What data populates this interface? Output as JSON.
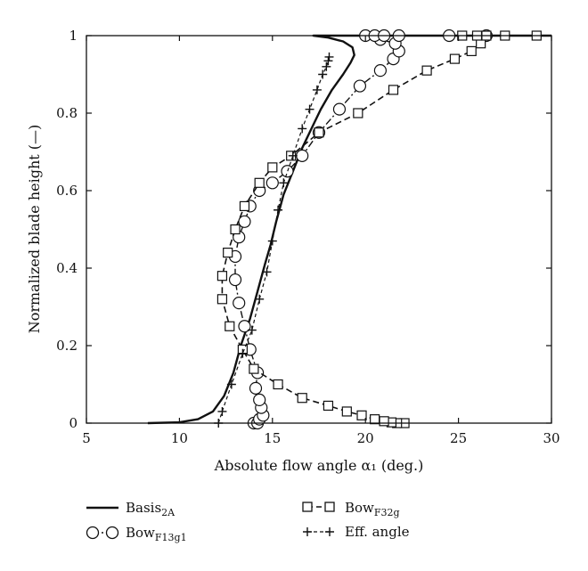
{
  "chart_data": {
    "type": "line",
    "title": "",
    "xlabel": "Absolute flow angle α₁ (deg.)",
    "ylabel": "Normalized blade height (—)",
    "xlim": [
      5,
      30
    ],
    "ylim": [
      0,
      1
    ],
    "xticks": [
      "5",
      "10",
      "15",
      "20",
      "25",
      "30"
    ],
    "yticks": [
      "0",
      "0.2",
      "0.4",
      "0.6",
      "0.8",
      "1"
    ],
    "grid": false,
    "legend_position": "bottom",
    "series": [
      {
        "name": "Basis",
        "name_sub": "2A",
        "style": "solid",
        "color": "#111111",
        "x": [
          8.3,
          10.0,
          11.0,
          11.8,
          12.4,
          12.9,
          13.3,
          13.8,
          14.2,
          14.6,
          14.9,
          15.2,
          15.6,
          16.1,
          16.6,
          17.1,
          17.6,
          18.2,
          18.8,
          19.2,
          19.4,
          19.3,
          18.8,
          18.0,
          17.2,
          20.0,
          25.0,
          30.0
        ],
        "y": [
          0.0,
          0.002,
          0.01,
          0.03,
          0.07,
          0.13,
          0.2,
          0.27,
          0.34,
          0.41,
          0.46,
          0.52,
          0.59,
          0.65,
          0.71,
          0.76,
          0.81,
          0.86,
          0.9,
          0.93,
          0.95,
          0.97,
          0.985,
          0.995,
          1.0,
          1.0,
          1.0,
          1.0
        ]
      },
      {
        "name": "Bow",
        "name_sub": "F13g1",
        "style": "dash-dot",
        "marker": "circle",
        "color": "#111111",
        "x": [
          14.0,
          14.2,
          14.3,
          14.5,
          14.4,
          14.3,
          14.1,
          14.2,
          13.8,
          13.5,
          13.2,
          13.0,
          13.0,
          13.2,
          13.5,
          13.8,
          14.3,
          15.0,
          15.8,
          16.6,
          17.5,
          18.6,
          19.7,
          20.8,
          21.5,
          21.8,
          21.6,
          20.8,
          20.0,
          20.5,
          21.0,
          21.8,
          24.5,
          26.5
        ],
        "y": [
          0.0,
          0.0,
          0.01,
          0.02,
          0.04,
          0.06,
          0.09,
          0.13,
          0.19,
          0.25,
          0.31,
          0.37,
          0.43,
          0.48,
          0.52,
          0.56,
          0.6,
          0.62,
          0.65,
          0.69,
          0.75,
          0.81,
          0.87,
          0.91,
          0.94,
          0.96,
          0.98,
          0.99,
          1.0,
          1.0,
          1.0,
          1.0,
          1.0,
          1.0
        ]
      },
      {
        "name": "Bow",
        "name_sub": "F32g",
        "style": "dashed",
        "marker": "square",
        "color": "#111111",
        "x": [
          22.1,
          21.7,
          21.4,
          21.0,
          20.5,
          19.8,
          19.0,
          18.0,
          16.6,
          15.3,
          14.0,
          13.4,
          12.7,
          12.3,
          12.3,
          12.6,
          13.0,
          13.5,
          14.3,
          15.0,
          16.0,
          17.5,
          19.6,
          21.5,
          23.3,
          24.8,
          25.7,
          26.2,
          26.5,
          25.2,
          26.0,
          27.5,
          29.2
        ],
        "y": [
          0.0,
          0.0,
          0.002,
          0.005,
          0.01,
          0.02,
          0.03,
          0.045,
          0.065,
          0.1,
          0.14,
          0.19,
          0.25,
          0.32,
          0.38,
          0.44,
          0.5,
          0.56,
          0.62,
          0.66,
          0.69,
          0.75,
          0.8,
          0.86,
          0.91,
          0.94,
          0.96,
          0.98,
          1.0,
          1.0,
          1.0,
          1.0,
          1.0
        ]
      },
      {
        "name": "Eff. angle",
        "style": "dash",
        "marker": "plus",
        "color": "#111111",
        "x": [
          12.1,
          12.3,
          12.8,
          13.4,
          13.9,
          14.3,
          14.7,
          15.0,
          15.3,
          15.6,
          16.1,
          16.6,
          17.0,
          17.4,
          17.7,
          17.9,
          18.0,
          18.05
        ],
        "y": [
          0.0,
          0.03,
          0.1,
          0.18,
          0.24,
          0.32,
          0.39,
          0.47,
          0.55,
          0.62,
          0.69,
          0.76,
          0.81,
          0.86,
          0.9,
          0.92,
          0.935,
          0.945
        ]
      }
    ]
  },
  "legend": {
    "basis": {
      "main": "Basis",
      "sub": "2A"
    },
    "f32g": {
      "main": "Bow",
      "sub": "F32g"
    },
    "f13g1": {
      "main": "Bow",
      "sub": "F13g1"
    },
    "eff": {
      "main": "Eff. angle"
    }
  }
}
